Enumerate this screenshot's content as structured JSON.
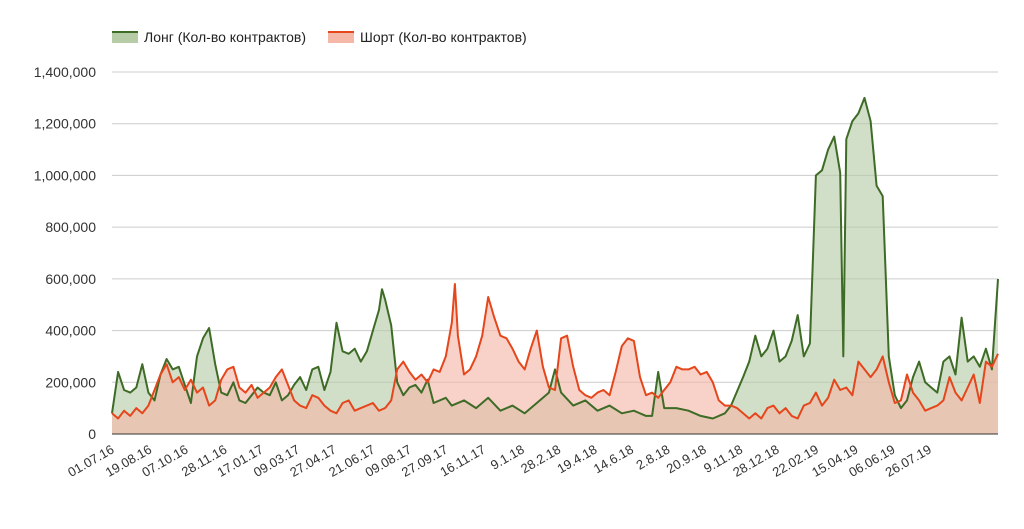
{
  "chart_data": {
    "type": "area",
    "legend_position": "top-left",
    "grid": true,
    "ylim": [
      0,
      1400000
    ],
    "yticks": [
      "0",
      "200,000",
      "400,000",
      "600,000",
      "800,000",
      "1,000,000",
      "1,200,000",
      "1,400,000"
    ],
    "x_tick_labels": [
      "01.07.16",
      "19.08.16",
      "07.10.16",
      "28.11.16",
      "17.01.17",
      "09.03.17",
      "27.04.17",
      "21.06.17",
      "09.08.17",
      "27.09.17",
      "16.11.17",
      "9.1.18",
      "28.2.18",
      "19.4.18",
      "14.6.18",
      "2.8.18",
      "20.9.18",
      "9.11.18",
      "28.12.18",
      "22.02.19",
      "15.04.19",
      "06.06.19",
      "26.07.19"
    ],
    "x_tick_positions": [
      0,
      0.062,
      0.122,
      0.186,
      0.246,
      0.306,
      0.366,
      0.43,
      0.49,
      0.55,
      0.612,
      0.676,
      0.736,
      0.796,
      0.856,
      0.916,
      0.976,
      1.036,
      1.096,
      1.161,
      1.226,
      1.287,
      1.347
    ],
    "x_domain": [
      0,
      1.46
    ],
    "series": [
      {
        "name": "Лонг (Кол-во контрактов)",
        "color": "#3e6b26",
        "fill": "#b5cca6",
        "points": [
          [
            0,
            80000
          ],
          [
            0.01,
            240000
          ],
          [
            0.02,
            170000
          ],
          [
            0.03,
            160000
          ],
          [
            0.04,
            180000
          ],
          [
            0.05,
            270000
          ],
          [
            0.06,
            160000
          ],
          [
            0.07,
            130000
          ],
          [
            0.08,
            230000
          ],
          [
            0.09,
            290000
          ],
          [
            0.1,
            250000
          ],
          [
            0.11,
            260000
          ],
          [
            0.12,
            190000
          ],
          [
            0.13,
            120000
          ],
          [
            0.14,
            300000
          ],
          [
            0.15,
            370000
          ],
          [
            0.16,
            410000
          ],
          [
            0.17,
            270000
          ],
          [
            0.18,
            160000
          ],
          [
            0.19,
            150000
          ],
          [
            0.2,
            200000
          ],
          [
            0.21,
            130000
          ],
          [
            0.22,
            120000
          ],
          [
            0.23,
            150000
          ],
          [
            0.24,
            180000
          ],
          [
            0.25,
            160000
          ],
          [
            0.26,
            150000
          ],
          [
            0.27,
            200000
          ],
          [
            0.28,
            130000
          ],
          [
            0.29,
            150000
          ],
          [
            0.3,
            190000
          ],
          [
            0.31,
            220000
          ],
          [
            0.32,
            170000
          ],
          [
            0.33,
            250000
          ],
          [
            0.34,
            260000
          ],
          [
            0.35,
            170000
          ],
          [
            0.36,
            240000
          ],
          [
            0.37,
            430000
          ],
          [
            0.38,
            320000
          ],
          [
            0.39,
            310000
          ],
          [
            0.4,
            330000
          ],
          [
            0.41,
            280000
          ],
          [
            0.42,
            320000
          ],
          [
            0.43,
            400000
          ],
          [
            0.44,
            480000
          ],
          [
            0.445,
            560000
          ],
          [
            0.45,
            520000
          ],
          [
            0.46,
            420000
          ],
          [
            0.47,
            200000
          ],
          [
            0.48,
            150000
          ],
          [
            0.49,
            180000
          ],
          [
            0.5,
            190000
          ],
          [
            0.51,
            160000
          ],
          [
            0.52,
            210000
          ],
          [
            0.53,
            120000
          ],
          [
            0.55,
            140000
          ],
          [
            0.56,
            110000
          ],
          [
            0.58,
            130000
          ],
          [
            0.6,
            100000
          ],
          [
            0.62,
            140000
          ],
          [
            0.64,
            90000
          ],
          [
            0.66,
            110000
          ],
          [
            0.68,
            80000
          ],
          [
            0.7,
            120000
          ],
          [
            0.72,
            160000
          ],
          [
            0.73,
            250000
          ],
          [
            0.74,
            160000
          ],
          [
            0.76,
            110000
          ],
          [
            0.78,
            130000
          ],
          [
            0.8,
            90000
          ],
          [
            0.82,
            110000
          ],
          [
            0.84,
            80000
          ],
          [
            0.86,
            90000
          ],
          [
            0.88,
            70000
          ],
          [
            0.89,
            70000
          ],
          [
            0.9,
            240000
          ],
          [
            0.91,
            100000
          ],
          [
            0.93,
            100000
          ],
          [
            0.95,
            90000
          ],
          [
            0.97,
            70000
          ],
          [
            0.99,
            60000
          ],
          [
            1.01,
            80000
          ],
          [
            1.02,
            110000
          ],
          [
            1.04,
            220000
          ],
          [
            1.05,
            280000
          ],
          [
            1.06,
            380000
          ],
          [
            1.07,
            300000
          ],
          [
            1.08,
            330000
          ],
          [
            1.09,
            400000
          ],
          [
            1.1,
            280000
          ],
          [
            1.11,
            300000
          ],
          [
            1.12,
            360000
          ],
          [
            1.13,
            460000
          ],
          [
            1.14,
            300000
          ],
          [
            1.15,
            350000
          ],
          [
            1.16,
            1000000
          ],
          [
            1.17,
            1020000
          ],
          [
            1.18,
            1100000
          ],
          [
            1.19,
            1150000
          ],
          [
            1.2,
            1010000
          ],
          [
            1.205,
            300000
          ],
          [
            1.21,
            1140000
          ],
          [
            1.22,
            1210000
          ],
          [
            1.23,
            1240000
          ],
          [
            1.24,
            1300000
          ],
          [
            1.25,
            1210000
          ],
          [
            1.26,
            960000
          ],
          [
            1.27,
            920000
          ],
          [
            1.28,
            300000
          ],
          [
            1.29,
            150000
          ],
          [
            1.3,
            100000
          ],
          [
            1.31,
            130000
          ],
          [
            1.32,
            220000
          ],
          [
            1.33,
            280000
          ],
          [
            1.34,
            200000
          ],
          [
            1.35,
            180000
          ],
          [
            1.36,
            160000
          ],
          [
            1.37,
            280000
          ],
          [
            1.38,
            300000
          ],
          [
            1.39,
            230000
          ],
          [
            1.4,
            450000
          ],
          [
            1.41,
            280000
          ],
          [
            1.42,
            300000
          ],
          [
            1.43,
            260000
          ],
          [
            1.44,
            330000
          ],
          [
            1.45,
            250000
          ],
          [
            1.46,
            600000
          ]
        ]
      },
      {
        "name": "Шорт (Кол-во контрактов)",
        "color": "#e5461b",
        "fill": "#f4b7a8",
        "points": [
          [
            0,
            80000
          ],
          [
            0.01,
            60000
          ],
          [
            0.02,
            90000
          ],
          [
            0.03,
            70000
          ],
          [
            0.04,
            100000
          ],
          [
            0.05,
            80000
          ],
          [
            0.06,
            110000
          ],
          [
            0.07,
            170000
          ],
          [
            0.08,
            230000
          ],
          [
            0.09,
            270000
          ],
          [
            0.1,
            200000
          ],
          [
            0.11,
            220000
          ],
          [
            0.12,
            170000
          ],
          [
            0.13,
            210000
          ],
          [
            0.14,
            160000
          ],
          [
            0.15,
            180000
          ],
          [
            0.16,
            110000
          ],
          [
            0.17,
            130000
          ],
          [
            0.18,
            210000
          ],
          [
            0.19,
            250000
          ],
          [
            0.2,
            260000
          ],
          [
            0.21,
            180000
          ],
          [
            0.22,
            160000
          ],
          [
            0.23,
            190000
          ],
          [
            0.24,
            140000
          ],
          [
            0.25,
            160000
          ],
          [
            0.26,
            180000
          ],
          [
            0.27,
            220000
          ],
          [
            0.28,
            250000
          ],
          [
            0.29,
            190000
          ],
          [
            0.3,
            130000
          ],
          [
            0.31,
            110000
          ],
          [
            0.32,
            100000
          ],
          [
            0.33,
            150000
          ],
          [
            0.34,
            140000
          ],
          [
            0.35,
            110000
          ],
          [
            0.36,
            90000
          ],
          [
            0.37,
            80000
          ],
          [
            0.38,
            120000
          ],
          [
            0.39,
            130000
          ],
          [
            0.4,
            90000
          ],
          [
            0.41,
            100000
          ],
          [
            0.42,
            110000
          ],
          [
            0.43,
            120000
          ],
          [
            0.44,
            90000
          ],
          [
            0.45,
            100000
          ],
          [
            0.46,
            130000
          ],
          [
            0.47,
            250000
          ],
          [
            0.48,
            280000
          ],
          [
            0.49,
            240000
          ],
          [
            0.5,
            210000
          ],
          [
            0.51,
            230000
          ],
          [
            0.52,
            200000
          ],
          [
            0.53,
            250000
          ],
          [
            0.54,
            240000
          ],
          [
            0.55,
            300000
          ],
          [
            0.56,
            430000
          ],
          [
            0.565,
            580000
          ],
          [
            0.57,
            380000
          ],
          [
            0.58,
            230000
          ],
          [
            0.59,
            250000
          ],
          [
            0.6,
            300000
          ],
          [
            0.61,
            380000
          ],
          [
            0.62,
            530000
          ],
          [
            0.63,
            450000
          ],
          [
            0.64,
            380000
          ],
          [
            0.65,
            370000
          ],
          [
            0.66,
            330000
          ],
          [
            0.67,
            280000
          ],
          [
            0.68,
            250000
          ],
          [
            0.69,
            330000
          ],
          [
            0.7,
            400000
          ],
          [
            0.71,
            260000
          ],
          [
            0.72,
            180000
          ],
          [
            0.73,
            170000
          ],
          [
            0.74,
            370000
          ],
          [
            0.75,
            380000
          ],
          [
            0.76,
            260000
          ],
          [
            0.77,
            170000
          ],
          [
            0.78,
            150000
          ],
          [
            0.79,
            140000
          ],
          [
            0.8,
            160000
          ],
          [
            0.81,
            170000
          ],
          [
            0.82,
            150000
          ],
          [
            0.83,
            240000
          ],
          [
            0.84,
            340000
          ],
          [
            0.85,
            370000
          ],
          [
            0.86,
            360000
          ],
          [
            0.87,
            220000
          ],
          [
            0.88,
            150000
          ],
          [
            0.89,
            160000
          ],
          [
            0.9,
            140000
          ],
          [
            0.91,
            170000
          ],
          [
            0.92,
            200000
          ],
          [
            0.93,
            260000
          ],
          [
            0.94,
            250000
          ],
          [
            0.95,
            250000
          ],
          [
            0.96,
            260000
          ],
          [
            0.97,
            230000
          ],
          [
            0.98,
            240000
          ],
          [
            0.99,
            200000
          ],
          [
            1.0,
            130000
          ],
          [
            1.01,
            110000
          ],
          [
            1.02,
            110000
          ],
          [
            1.03,
            100000
          ],
          [
            1.04,
            80000
          ],
          [
            1.05,
            60000
          ],
          [
            1.06,
            80000
          ],
          [
            1.07,
            60000
          ],
          [
            1.08,
            100000
          ],
          [
            1.09,
            110000
          ],
          [
            1.1,
            80000
          ],
          [
            1.11,
            100000
          ],
          [
            1.12,
            70000
          ],
          [
            1.13,
            60000
          ],
          [
            1.14,
            110000
          ],
          [
            1.15,
            120000
          ],
          [
            1.16,
            160000
          ],
          [
            1.17,
            110000
          ],
          [
            1.18,
            140000
          ],
          [
            1.19,
            210000
          ],
          [
            1.2,
            170000
          ],
          [
            1.21,
            180000
          ],
          [
            1.22,
            150000
          ],
          [
            1.23,
            280000
          ],
          [
            1.24,
            250000
          ],
          [
            1.25,
            220000
          ],
          [
            1.26,
            250000
          ],
          [
            1.27,
            300000
          ],
          [
            1.28,
            200000
          ],
          [
            1.29,
            120000
          ],
          [
            1.3,
            130000
          ],
          [
            1.31,
            230000
          ],
          [
            1.32,
            160000
          ],
          [
            1.33,
            130000
          ],
          [
            1.34,
            90000
          ],
          [
            1.35,
            100000
          ],
          [
            1.36,
            110000
          ],
          [
            1.37,
            130000
          ],
          [
            1.38,
            220000
          ],
          [
            1.39,
            160000
          ],
          [
            1.4,
            130000
          ],
          [
            1.41,
            180000
          ],
          [
            1.42,
            230000
          ],
          [
            1.43,
            120000
          ],
          [
            1.44,
            280000
          ],
          [
            1.45,
            260000
          ],
          [
            1.46,
            310000
          ]
        ]
      }
    ]
  }
}
